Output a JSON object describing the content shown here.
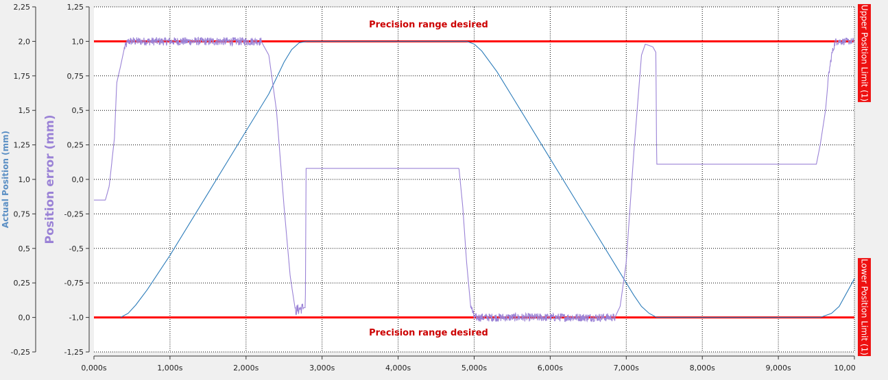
{
  "chart_data": {
    "type": "line",
    "title": "",
    "x": {
      "label": "",
      "range": [
        0,
        10
      ],
      "ticks": [
        0,
        1,
        2,
        3,
        4,
        5,
        6,
        7,
        8,
        9,
        10
      ],
      "tick_labels": [
        "0,000s",
        "1,000s",
        "2,000s",
        "3,000s",
        "4,000s",
        "5,000s",
        "6,000s",
        "7,000s",
        "8,000s",
        "9,000s",
        "10,00"
      ]
    },
    "y_left": {
      "label": "Actual Position (mm)",
      "color": "#5b8fc4",
      "range": [
        -0.25,
        2.25
      ],
      "ticks": [
        -0.25,
        0,
        0.25,
        0.5,
        0.75,
        1,
        1.25,
        1.5,
        1.75,
        2,
        2.25
      ],
      "tick_labels": [
        "-0,25",
        "0,0",
        "0,25",
        "0,5",
        "0,75",
        "1,0",
        "1,25",
        "1,5",
        "1,75",
        "2,0",
        "2,25"
      ]
    },
    "y_error": {
      "label": "Position error (mm)",
      "color": "#9a82d6",
      "range": [
        -1.25,
        1.25
      ],
      "ticks": [
        -1.25,
        -1,
        -0.75,
        -0.5,
        -0.25,
        0,
        0.25,
        0.5,
        0.75,
        1,
        1.25
      ],
      "tick_labels": [
        "-1,25",
        "-1,0",
        "-0,75",
        "-0,5",
        "-0,25",
        "0,0",
        "0,25",
        "0,5",
        "0,75",
        "1,0",
        "1,25"
      ]
    },
    "grid": true,
    "series": [
      {
        "axis": "y_left",
        "color": "#2b7bb9",
        "points": [
          [
            0.35,
            0
          ],
          [
            0.45,
            0.03
          ],
          [
            0.55,
            0.09
          ],
          [
            0.7,
            0.2
          ],
          [
            1.0,
            0.45
          ],
          [
            1.5,
            0.9
          ],
          [
            2.0,
            1.35
          ],
          [
            2.3,
            1.62
          ],
          [
            2.5,
            1.85
          ],
          [
            2.6,
            1.94
          ],
          [
            2.7,
            1.99
          ],
          [
            2.8,
            2.0
          ],
          [
            4.9,
            2.0
          ],
          [
            5.0,
            1.98
          ],
          [
            5.1,
            1.93
          ],
          [
            5.3,
            1.78
          ],
          [
            5.5,
            1.6
          ],
          [
            6.0,
            1.15
          ],
          [
            6.5,
            0.7
          ],
          [
            7.0,
            0.25
          ],
          [
            7.1,
            0.16
          ],
          [
            7.2,
            0.08
          ],
          [
            7.3,
            0.03
          ],
          [
            7.4,
            0
          ],
          [
            9.55,
            0
          ],
          [
            9.6,
            0.01
          ],
          [
            9.7,
            0.03
          ],
          [
            9.8,
            0.08
          ],
          [
            10.0,
            0.28
          ]
        ]
      },
      {
        "axis": "y_error",
        "color": "#9a82d6",
        "noise": [
          [
            0.4,
            2.2,
            0.03
          ],
          [
            4.95,
            6.85,
            0.03
          ],
          [
            9.65,
            10.0,
            0.025
          ],
          [
            2.65,
            2.75,
            0.04
          ]
        ],
        "points": [
          [
            0,
            -0.15
          ],
          [
            0.15,
            -0.15
          ],
          [
            0.2,
            -0.05
          ],
          [
            0.27,
            0.3
          ],
          [
            0.3,
            0.7
          ],
          [
            0.35,
            0.82
          ],
          [
            0.4,
            0.95
          ],
          [
            0.45,
            1.0
          ],
          [
            2.2,
            1.0
          ],
          [
            2.3,
            0.9
          ],
          [
            2.4,
            0.5
          ],
          [
            2.5,
            -0.2
          ],
          [
            2.58,
            -0.7
          ],
          [
            2.65,
            -0.95
          ],
          [
            2.75,
            -0.93
          ],
          [
            2.78,
            -0.93
          ],
          [
            2.79,
            0.08
          ],
          [
            4.8,
            0.08
          ],
          [
            4.85,
            -0.2
          ],
          [
            4.9,
            -0.6
          ],
          [
            4.95,
            -0.9
          ],
          [
            5.0,
            -1.0
          ],
          [
            6.85,
            -1.0
          ],
          [
            6.92,
            -0.92
          ],
          [
            7.0,
            -0.6
          ],
          [
            7.1,
            0.2
          ],
          [
            7.2,
            0.9
          ],
          [
            7.25,
            0.98
          ],
          [
            7.35,
            0.96
          ],
          [
            7.39,
            0.92
          ],
          [
            7.4,
            0.11
          ],
          [
            9.5,
            0.11
          ],
          [
            9.55,
            0.25
          ],
          [
            9.62,
            0.5
          ],
          [
            9.66,
            0.75
          ],
          [
            9.7,
            0.9
          ],
          [
            9.75,
            1.0
          ],
          [
            10.0,
            1.0
          ]
        ]
      }
    ],
    "reference_lines": [
      {
        "axis": "y_error",
        "value": 1.0,
        "color": "#ff0000"
      },
      {
        "axis": "y_error",
        "value": -1.0,
        "color": "#ff0000"
      }
    ],
    "annotations": [
      {
        "text": "Precision range desired",
        "x": 4.4,
        "y": 1.12,
        "color": "#cc0000"
      },
      {
        "text": "Precision range desired",
        "x": 4.4,
        "y": -1.11,
        "color": "#cc0000"
      }
    ],
    "limit_markers": [
      {
        "text": "Upper Position Limit (1)",
        "color": "#ee1111",
        "y_from": 1.27,
        "y_to": 0.56
      },
      {
        "text": "Lower Position Limit (1)",
        "color": "#ee1111",
        "y_from": -0.57,
        "y_to": -1.28
      }
    ]
  }
}
